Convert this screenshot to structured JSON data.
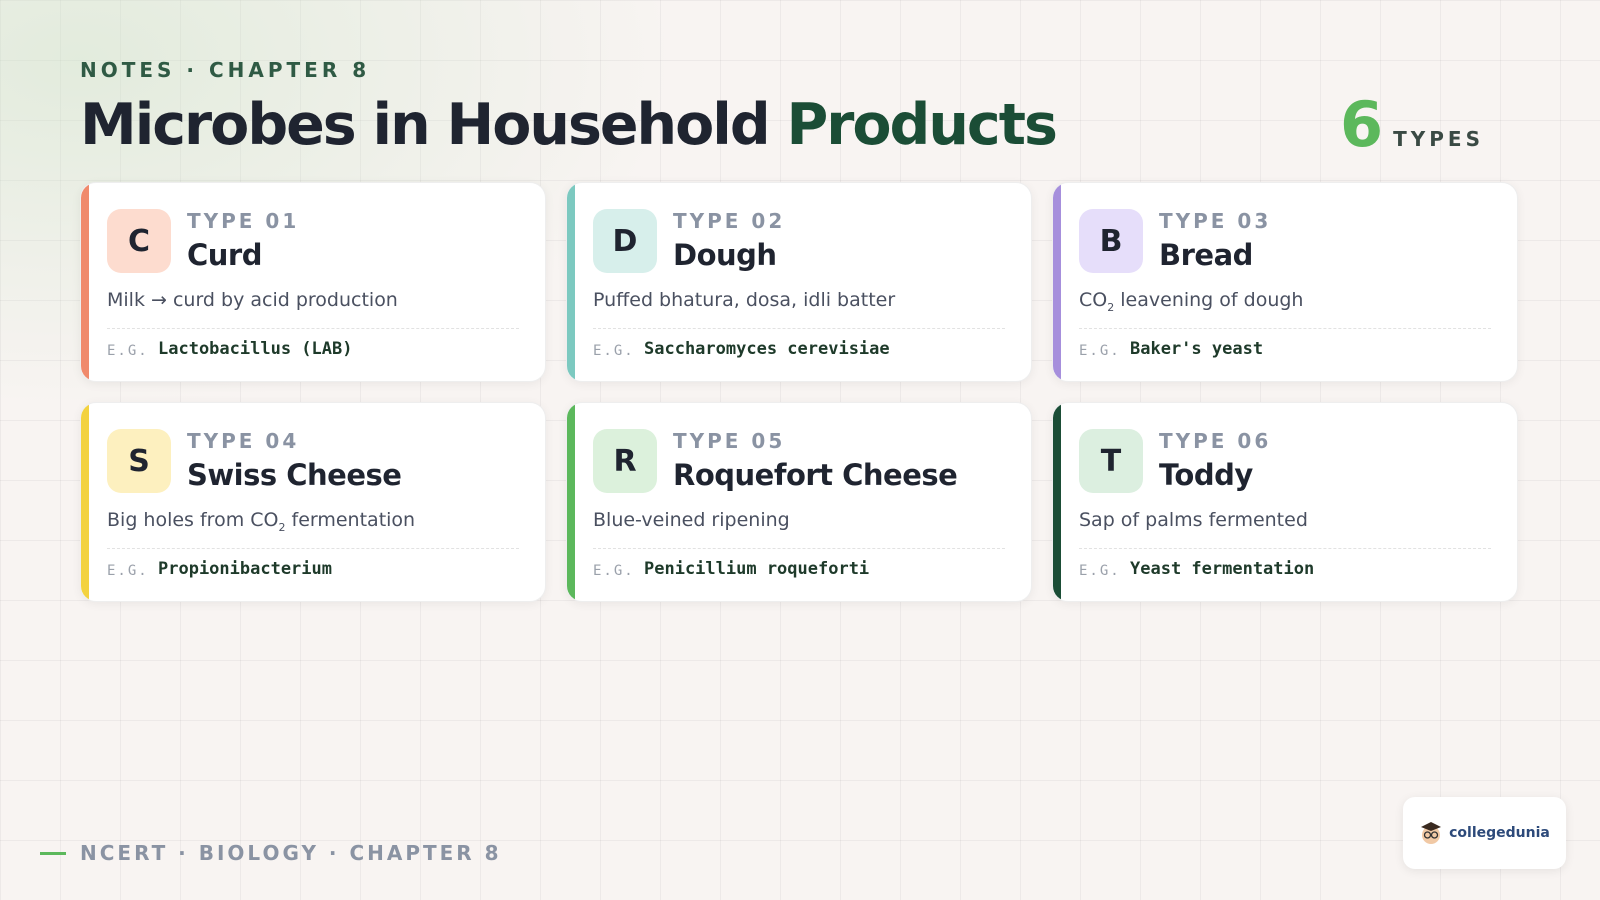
{
  "header": {
    "eyebrow": "NOTES · CHAPTER 8",
    "title": "Microbes in Household",
    "title_accent": "Products",
    "count": "6",
    "count_label": "TYPES"
  },
  "cards": [
    {
      "letter": "C",
      "type_label": "TYPE 01",
      "name": "Curd",
      "description": [
        {
          "text": "Milk → curd by acid production"
        }
      ],
      "example_label": "E.G.",
      "example": "Lactobacillus (LAB)",
      "accent": "#f08a6c",
      "badge": "#fddccf"
    },
    {
      "letter": "D",
      "type_label": "TYPE 02",
      "name": "Dough",
      "description": [
        {
          "text": "Puffed bhatura, dosa, idli batter"
        }
      ],
      "example_label": "E.G.",
      "example": "Saccharomyces cerevisiae",
      "accent": "#7cc9c0",
      "badge": "#d7efeb"
    },
    {
      "letter": "B",
      "type_label": "TYPE 03",
      "name": "Bread",
      "description": [
        {
          "text": "CO"
        },
        {
          "sub": "2"
        },
        {
          "text": " leavening of dough"
        }
      ],
      "example_label": "E.G.",
      "example": "Baker's yeast",
      "accent": "#a68fdc",
      "badge": "#e6defa"
    },
    {
      "letter": "S",
      "type_label": "TYPE 04",
      "name": "Swiss Cheese",
      "description": [
        {
          "text": "Big holes from CO"
        },
        {
          "sub": "2"
        },
        {
          "text": " fermentation"
        }
      ],
      "example_label": "E.G.",
      "example": "Propionibacterium",
      "accent": "#f3d23f",
      "badge": "#fdf0bf"
    },
    {
      "letter": "R",
      "type_label": "TYPE 05",
      "name": "Roquefort Cheese",
      "description": [
        {
          "text": "Blue-veined ripening"
        }
      ],
      "example_label": "E.G.",
      "example": "Penicillium roqueforti",
      "accent": "#5cb85c",
      "badge": "#dcf1dc"
    },
    {
      "letter": "T",
      "type_label": "TYPE 06",
      "name": "Toddy",
      "description": [
        {
          "text": "Sap of palms fermented"
        }
      ],
      "example_label": "E.G.",
      "example": "Yeast fermentation",
      "accent": "#1b4d36",
      "badge": "#dcefe0"
    }
  ],
  "footer": {
    "label": "NCERT · BIOLOGY · CHAPTER 8",
    "logo": "collegedunia"
  }
}
